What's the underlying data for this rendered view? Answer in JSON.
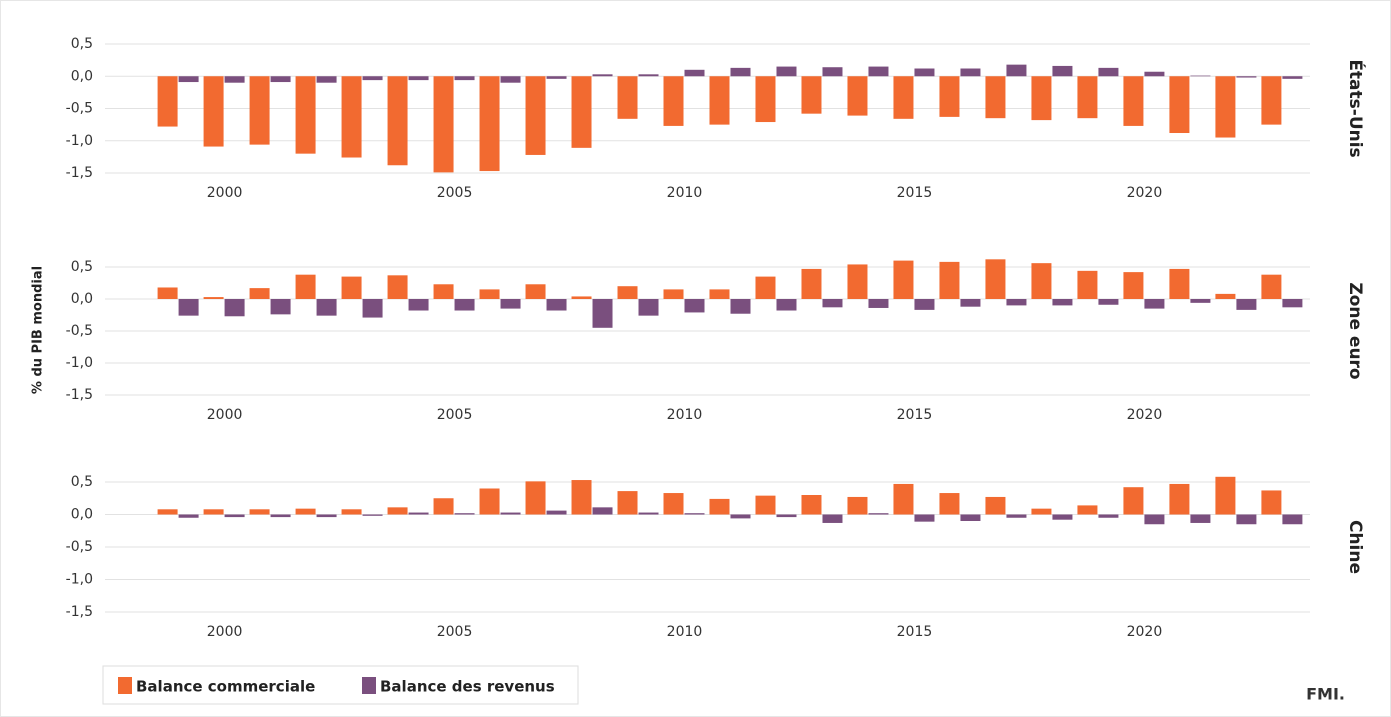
{
  "ylabel": "% du PIB mondial",
  "source": "FMI.",
  "chart_data": [
    {
      "type": "bar",
      "title": "États-Unis",
      "x": [
        1999,
        2000,
        2001,
        2002,
        2003,
        2004,
        2005,
        2006,
        2007,
        2008,
        2009,
        2010,
        2011,
        2012,
        2013,
        2014,
        2015,
        2016,
        2017,
        2018,
        2019,
        2020,
        2021,
        2022,
        2023
      ],
      "series": [
        {
          "name": "Balance commerciale",
          "color": "#f26a30",
          "values": [
            -0.78,
            -1.09,
            -1.06,
            -1.2,
            -1.26,
            -1.38,
            -1.49,
            -1.47,
            -1.22,
            -1.11,
            -0.66,
            -0.77,
            -0.75,
            -0.71,
            -0.58,
            -0.61,
            -0.66,
            -0.63,
            -0.65,
            -0.68,
            -0.65,
            -0.77,
            -0.88,
            -0.95,
            -0.75
          ]
        },
        {
          "name": "Balance des revenus",
          "color": "#7a4f7e",
          "values": [
            -0.09,
            -0.1,
            -0.09,
            -0.1,
            -0.06,
            -0.06,
            -0.06,
            -0.1,
            -0.04,
            0.03,
            0.03,
            0.1,
            0.13,
            0.15,
            0.14,
            0.15,
            0.12,
            0.12,
            0.18,
            0.16,
            0.13,
            0.07,
            0.01,
            -0.02,
            -0.04
          ]
        }
      ],
      "xlim": [
        1997.4,
        2023.6
      ],
      "xticks": [
        2000,
        2005,
        2010,
        2015,
        2020
      ],
      "ylim": [
        -1.5,
        0.5
      ],
      "yticks": [
        {
          "value": 0.5,
          "label": "0,5"
        },
        {
          "value": 0,
          "label": "0,0"
        },
        {
          "value": -0.5,
          "label": "-0,5"
        },
        {
          "value": -1,
          "label": "-1,0"
        },
        {
          "value": -1.5,
          "label": "-1,5"
        }
      ],
      "grid": true
    },
    {
      "type": "bar",
      "title": "Zone euro",
      "x": [
        1999,
        2000,
        2001,
        2002,
        2003,
        2004,
        2005,
        2006,
        2007,
        2008,
        2009,
        2010,
        2011,
        2012,
        2013,
        2014,
        2015,
        2016,
        2017,
        2018,
        2019,
        2020,
        2021,
        2022,
        2023
      ],
      "series": [
        {
          "name": "Balance commerciale",
          "color": "#f26a30",
          "values": [
            0.18,
            0.03,
            0.17,
            0.38,
            0.35,
            0.37,
            0.23,
            0.15,
            0.23,
            0.04,
            0.2,
            0.15,
            0.15,
            0.35,
            0.47,
            0.54,
            0.6,
            0.58,
            0.62,
            0.56,
            0.44,
            0.42,
            0.47,
            0.08,
            0.38
          ]
        },
        {
          "name": "Balance des revenus",
          "color": "#7a4f7e",
          "values": [
            -0.26,
            -0.27,
            -0.24,
            -0.26,
            -0.29,
            -0.18,
            -0.18,
            -0.15,
            -0.18,
            -0.45,
            -0.26,
            -0.21,
            -0.23,
            -0.18,
            -0.13,
            -0.14,
            -0.17,
            -0.12,
            -0.1,
            -0.1,
            -0.09,
            -0.15,
            -0.06,
            -0.17,
            -0.13
          ]
        }
      ],
      "xlim": [
        1997.4,
        2023.6
      ],
      "xticks": [
        2000,
        2005,
        2010,
        2015,
        2020
      ],
      "ylim": [
        -1.5,
        0.5
      ],
      "yticks": [
        {
          "value": 0.5,
          "label": "0,5"
        },
        {
          "value": 0,
          "label": "0,0"
        },
        {
          "value": -0.5,
          "label": "-0,5"
        },
        {
          "value": -1,
          "label": "-1,0"
        },
        {
          "value": -1.5,
          "label": "-1,5"
        }
      ],
      "grid": true
    },
    {
      "type": "bar",
      "title": "Chine",
      "x": [
        1999,
        2000,
        2001,
        2002,
        2003,
        2004,
        2005,
        2006,
        2007,
        2008,
        2009,
        2010,
        2011,
        2012,
        2013,
        2014,
        2015,
        2016,
        2017,
        2018,
        2019,
        2020,
        2021,
        2022,
        2023
      ],
      "series": [
        {
          "name": "Balance commerciale",
          "color": "#f26a30",
          "values": [
            0.08,
            0.08,
            0.08,
            0.09,
            0.08,
            0.11,
            0.25,
            0.4,
            0.51,
            0.53,
            0.36,
            0.33,
            0.24,
            0.29,
            0.3,
            0.27,
            0.47,
            0.33,
            0.27,
            0.09,
            0.14,
            0.42,
            0.47,
            0.58,
            0.37
          ]
        },
        {
          "name": "Balance des revenus",
          "color": "#7a4f7e",
          "values": [
            -0.05,
            -0.04,
            -0.04,
            -0.04,
            -0.02,
            0.03,
            0.02,
            0.03,
            0.06,
            0.11,
            0.03,
            0.02,
            -0.06,
            -0.04,
            -0.13,
            0.02,
            -0.11,
            -0.1,
            -0.05,
            -0.08,
            -0.05,
            -0.15,
            -0.13,
            -0.15,
            -0.15
          ]
        }
      ],
      "xlim": [
        1997.4,
        2023.6
      ],
      "xticks": [
        2000,
        2005,
        2010,
        2015,
        2020
      ],
      "ylim": [
        -1.5,
        0.5
      ],
      "yticks": [
        {
          "value": 0.5,
          "label": "0,5"
        },
        {
          "value": 0,
          "label": "0,0"
        },
        {
          "value": -0.5,
          "label": "-0,5"
        },
        {
          "value": -1,
          "label": "-1,0"
        },
        {
          "value": -1.5,
          "label": "-1,5"
        }
      ],
      "grid": true
    }
  ]
}
